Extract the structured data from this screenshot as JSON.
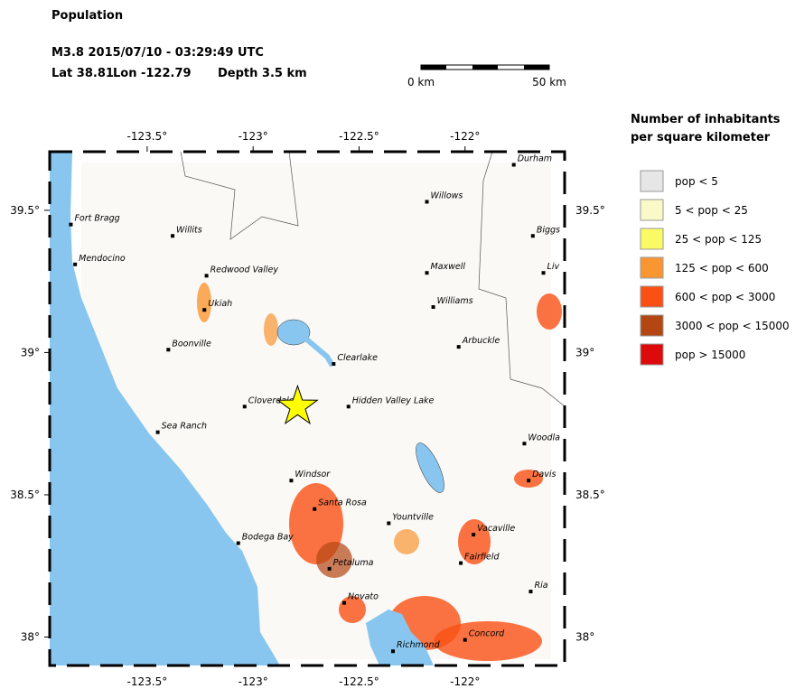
{
  "header": {
    "title": "Population",
    "event_line": "M3.8  2015/07/10 - 03:29:49 UTC",
    "lat": {
      "value": 38.81,
      "label": "Lat 38.81"
    },
    "lon": {
      "value": -122.79,
      "label": "Lon -122.79"
    },
    "depth": "Depth  3.5 km"
  },
  "scale_bar": {
    "start": "0 km",
    "end": "50 km"
  },
  "map": {
    "lonlim": [
      -123.96,
      -121.53
    ],
    "latlim": [
      37.9,
      39.706
    ],
    "lonticks": [
      {
        "value": -123.5,
        "label": "-123.5°"
      },
      {
        "value": -123,
        "label": "-123°"
      },
      {
        "value": -122.5,
        "label": "-122.5°"
      },
      {
        "value": -122,
        "label": "-122°"
      }
    ],
    "latticks": [
      {
        "value": 39.5,
        "label": "39.5°"
      },
      {
        "value": 39,
        "label": "39°"
      },
      {
        "value": 38.5,
        "label": "38.5°"
      },
      {
        "value": 38,
        "label": "38°"
      }
    ],
    "cities": [
      {
        "name": "Fort Bragg",
        "lon": -123.86,
        "lat": 39.45
      },
      {
        "name": "Mendocino",
        "lon": -123.84,
        "lat": 39.31
      },
      {
        "name": "Willits",
        "lon": -123.38,
        "lat": 39.41
      },
      {
        "name": "Redwood Valley",
        "lon": -123.22,
        "lat": 39.27
      },
      {
        "name": "Ukiah",
        "lon": -123.23,
        "lat": 39.15
      },
      {
        "name": "Boonville",
        "lon": -123.4,
        "lat": 39.01
      },
      {
        "name": "Cloverdale",
        "lon": -123.04,
        "lat": 38.81
      },
      {
        "name": "Clearlake",
        "lon": -122.62,
        "lat": 38.96
      },
      {
        "name": "Hidden Valley Lake",
        "lon": -122.55,
        "lat": 38.81
      },
      {
        "name": "Sea Ranch",
        "lon": -123.45,
        "lat": 38.72
      },
      {
        "name": "Windsor",
        "lon": -122.82,
        "lat": 38.55
      },
      {
        "name": "Santa Rosa",
        "lon": -122.71,
        "lat": 38.45
      },
      {
        "name": "Yountville",
        "lon": -122.36,
        "lat": 38.4
      },
      {
        "name": "Bodega Bay",
        "lon": -123.07,
        "lat": 38.33
      },
      {
        "name": "Petaluma",
        "lon": -122.64,
        "lat": 38.24
      },
      {
        "name": "Novato",
        "lon": -122.57,
        "lat": 38.12
      },
      {
        "name": "Richmond",
        "lon": -122.34,
        "lat": 37.95
      },
      {
        "name": "Concord",
        "lon": -122.0,
        "lat": 37.99
      },
      {
        "name": "Fairfield",
        "lon": -122.02,
        "lat": 38.26
      },
      {
        "name": "Vacaville",
        "lon": -121.96,
        "lat": 38.36
      },
      {
        "name": "Davis",
        "lon": -121.7,
        "lat": 38.55
      },
      {
        "name": "Woodla",
        "lon": -121.72,
        "lat": 38.68
      },
      {
        "name": "Arbuckle",
        "lon": -122.03,
        "lat": 39.02
      },
      {
        "name": "Williams",
        "lon": -122.15,
        "lat": 39.16
      },
      {
        "name": "Maxwell",
        "lon": -122.18,
        "lat": 39.28
      },
      {
        "name": "Willows",
        "lon": -122.18,
        "lat": 39.53
      },
      {
        "name": "Durham",
        "lon": -121.77,
        "lat": 39.66
      },
      {
        "name": "Biggs",
        "lon": -121.68,
        "lat": 39.41
      },
      {
        "name": "Liv",
        "lon": -121.63,
        "lat": 39.28
      },
      {
        "name": "Ria",
        "lon": -121.69,
        "lat": 38.16
      }
    ]
  },
  "legend": {
    "title_line1": "Number of inhabitants",
    "title_line2": "per square kilometer",
    "items": [
      {
        "label": "pop < 5",
        "color": "#e6e6e6"
      },
      {
        "label": "5 < pop < 25",
        "color": "#fafac8"
      },
      {
        "label": "25 < pop < 125",
        "color": "#fafa64"
      },
      {
        "label": "125 < pop < 600",
        "color": "#fa9632"
      },
      {
        "label": "600 < pop < 3000",
        "color": "#fa5014"
      },
      {
        "label": "3000 < pop < 15000",
        "color": "#b44614"
      },
      {
        "label": "pop > 15000",
        "color": "#dc0a0a"
      }
    ]
  }
}
